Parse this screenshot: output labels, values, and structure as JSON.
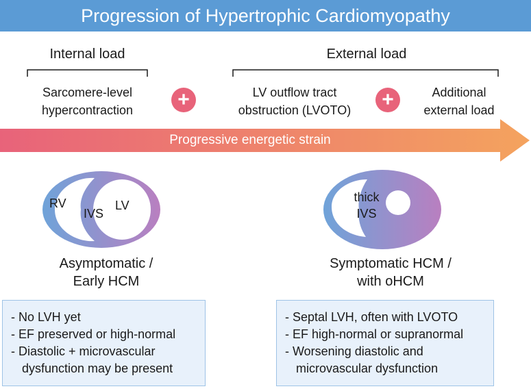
{
  "title": "Progression of Hypertrophic Cardiomyopathy",
  "internal_load": {
    "label": "Internal load",
    "item": [
      "Sarcomere-level",
      "hypercontraction"
    ]
  },
  "external_load": {
    "label": "External load",
    "item1": [
      "LV outflow tract",
      "obstruction (LVOTO)"
    ],
    "item2": [
      "Additional",
      "external load"
    ]
  },
  "plus_symbol": "+",
  "arrow": {
    "label": "Progressive energetic strain",
    "color_start": "#e8637a",
    "color_end": "#f4a35e"
  },
  "stage1": {
    "heart_labels": {
      "rv": "RV",
      "ivs": "IVS",
      "lv": "LV"
    },
    "caption": [
      "Asymptomatic /",
      "Early HCM"
    ],
    "bullets": [
      "- No LVH yet",
      "- EF preserved or high-normal",
      "- Diastolic + microvascular",
      "  dysfunction may be present"
    ]
  },
  "stage2": {
    "heart_labels": {
      "thick": "thick",
      "ivs": "IVS"
    },
    "caption": [
      "Symptomatic HCM /",
      "with oHCM"
    ],
    "bullets": [
      "- Septal LVH, often with LVOTO",
      "- EF high-normal or supranormal",
      "- Worsening diastolic and",
      "  microvascular dysfunction"
    ]
  },
  "colors": {
    "banner": "#5b9bd5",
    "heart_gradient_start": "#6fa3d9",
    "heart_gradient_end": "#b97fc0",
    "box_fill": "#e8f1fb",
    "box_border": "#9ec3e6"
  }
}
